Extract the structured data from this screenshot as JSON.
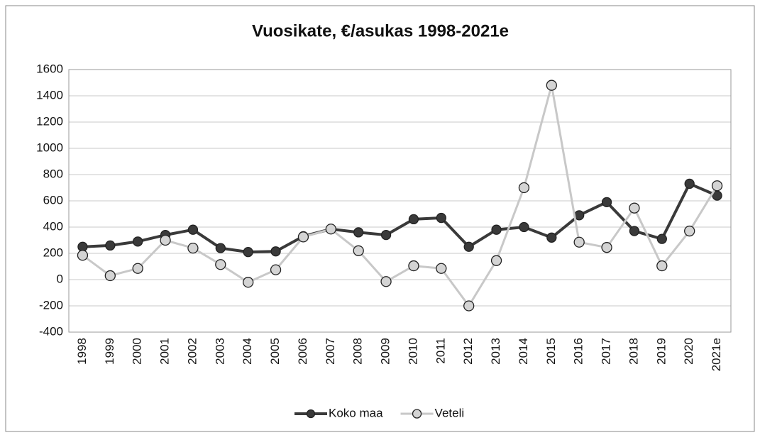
{
  "chart_data": {
    "type": "line",
    "title": "Vuosikate, €/asukas 1998-2021e",
    "categories": [
      "1998",
      "1999",
      "2000",
      "2001",
      "2002",
      "2003",
      "2004",
      "2005",
      "2006",
      "2007",
      "2008",
      "2009",
      "2010",
      "2011",
      "2012",
      "2013",
      "2014",
      "2015",
      "2016",
      "2017",
      "2018",
      "2019",
      "2020",
      "2021e"
    ],
    "series": [
      {
        "name": "Koko maa",
        "color": "#3a3a3a",
        "values": [
          250,
          260,
          290,
          340,
          380,
          240,
          210,
          215,
          330,
          385,
          360,
          340,
          460,
          470,
          250,
          380,
          400,
          320,
          490,
          590,
          370,
          310,
          730,
          640
        ]
      },
      {
        "name": "Veteli",
        "color": "#c8c8c8",
        "values": [
          185,
          30,
          85,
          300,
          240,
          115,
          -20,
          75,
          325,
          385,
          220,
          -15,
          105,
          85,
          -200,
          145,
          700,
          1480,
          285,
          245,
          545,
          105,
          370,
          715
        ]
      }
    ],
    "ylim": [
      -400,
      1600
    ],
    "yticks": [
      -400,
      -200,
      0,
      200,
      400,
      600,
      800,
      1000,
      1200,
      1400,
      1600
    ],
    "grid": true,
    "legend": "bottom"
  }
}
